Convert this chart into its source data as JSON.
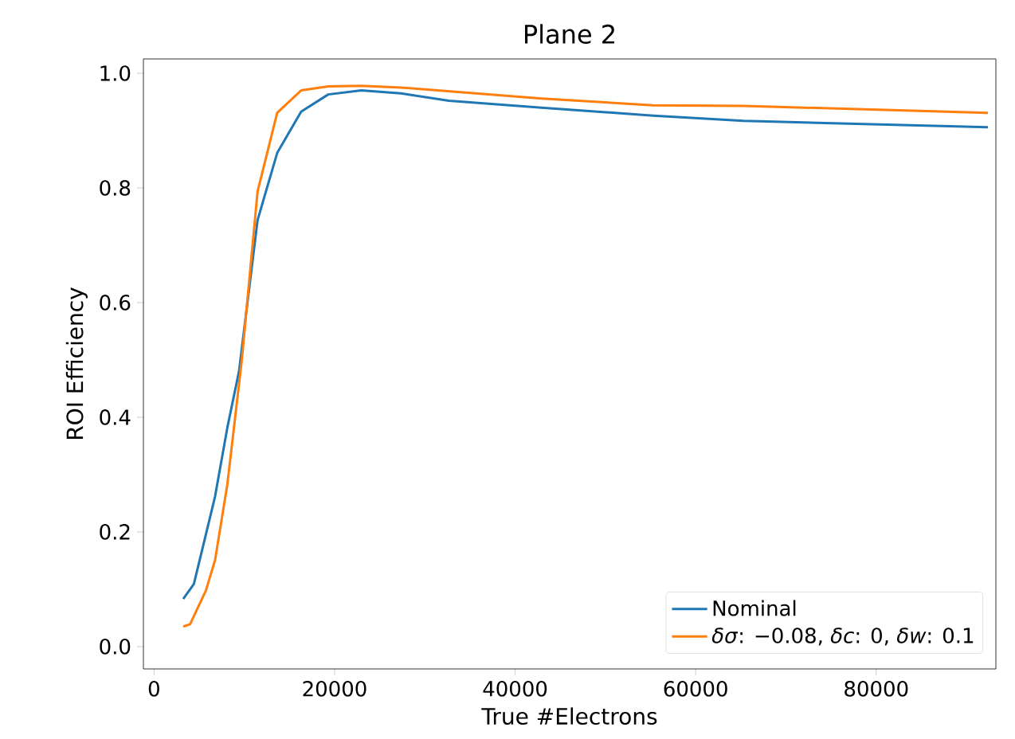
{
  "chart_data": {
    "type": "line",
    "title": "Plane 2",
    "xlabel": "True #Electrons",
    "ylabel": "ROI Efficiency",
    "xlim": [
      -1180,
      93260
    ],
    "ylim": [
      -0.039,
      1.025
    ],
    "xticks": [
      0,
      20000,
      40000,
      60000,
      80000
    ],
    "yticks": [
      {
        "value": 0,
        "label": "0.0"
      },
      {
        "value": 0.2,
        "label": "0.2"
      },
      {
        "value": 0.4,
        "label": "0.4"
      },
      {
        "value": 0.6,
        "label": "0.6"
      },
      {
        "value": 0.8,
        "label": "0.8"
      },
      {
        "value": 1.0,
        "label": "1.0"
      }
    ],
    "legend": "bottom right",
    "grid": false,
    "series": [
      {
        "name": "Nominal",
        "color": "#1f77b4",
        "x": [
          3230,
          4410,
          6760,
          8120,
          9410,
          11470,
          13640,
          16290,
          19290,
          22950,
          27360,
          32660,
          42950,
          55300,
          65310,
          92380
        ],
        "values": [
          0.083,
          0.109,
          0.262,
          0.382,
          0.48,
          0.744,
          0.861,
          0.933,
          0.963,
          0.97,
          0.965,
          0.952,
          0.94,
          0.926,
          0.917,
          0.906
        ]
      },
      {
        "name": "*δσ*: −0.08, *δc*: 0, *δw*: 0.1",
        "color": "#ff7f0e",
        "x": [
          3230,
          3990,
          5750,
          6760,
          8120,
          9710,
          11470,
          13640,
          16290,
          19290,
          22950,
          27360,
          42950,
          55300,
          65310,
          92380
        ],
        "values": [
          0.035,
          0.039,
          0.098,
          0.151,
          0.283,
          0.498,
          0.794,
          0.931,
          0.97,
          0.977,
          0.978,
          0.975,
          0.956,
          0.944,
          0.943,
          0.931
        ]
      }
    ]
  }
}
